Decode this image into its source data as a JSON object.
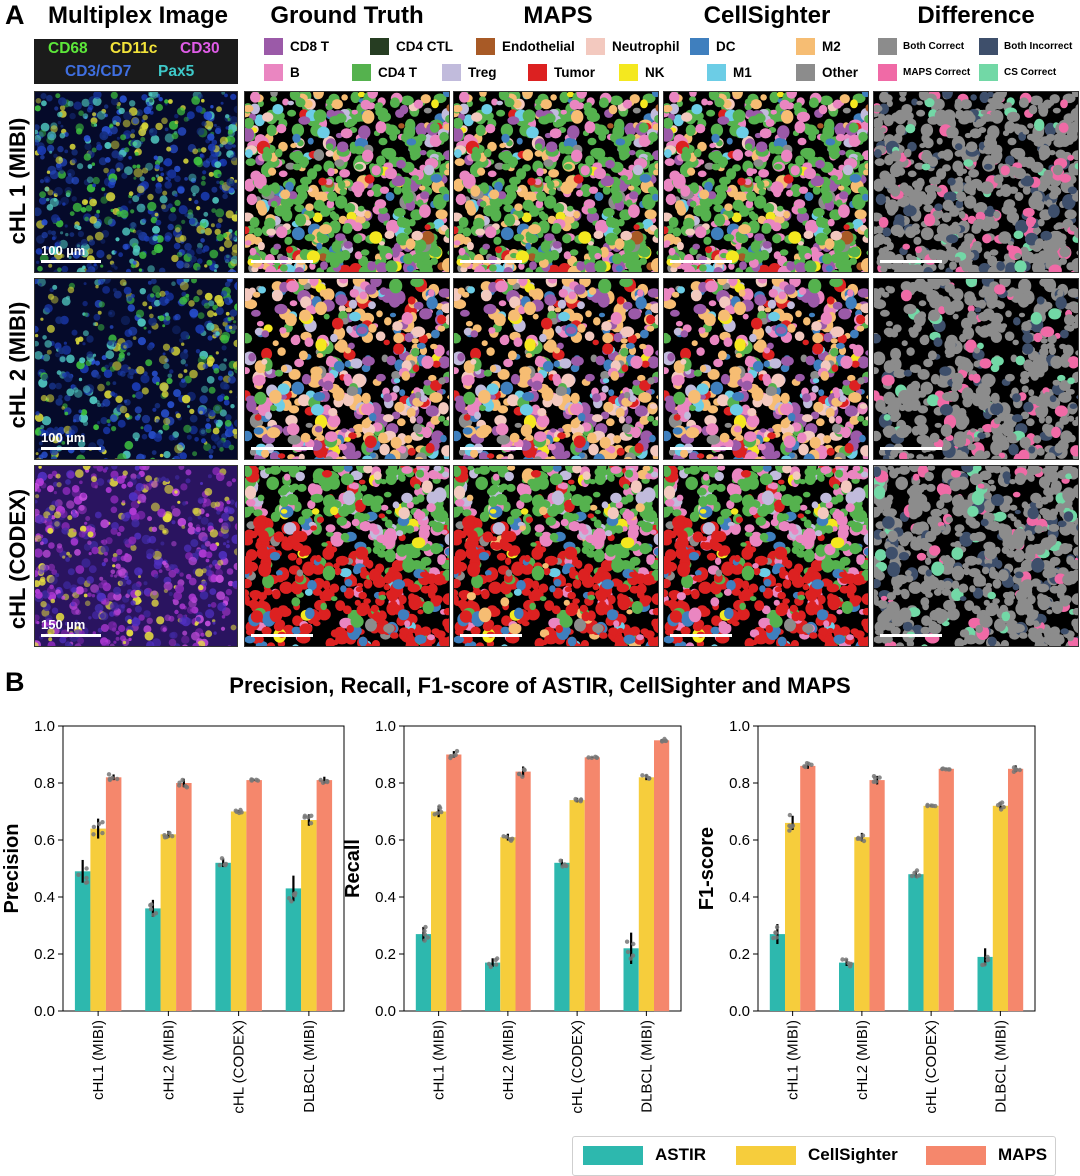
{
  "panel_a": {
    "letter": "A",
    "column_titles": [
      "Multiplex Image",
      "Ground Truth",
      "MAPS",
      "CellSighter",
      "Difference"
    ],
    "row_labels": [
      "cHL 1 (MIBI)",
      "cHL 2 (MIBI)",
      "cHL (CODEX)"
    ],
    "scale_labels": [
      "100 µm",
      "100 µm",
      "150 µm"
    ],
    "markers": [
      {
        "text": "CD68",
        "color": "#5de83a"
      },
      {
        "text": "CD11c",
        "color": "#f2e33a"
      },
      {
        "text": "CD30",
        "color": "#e05ce8"
      },
      {
        "text": "CD3/CD7",
        "color": "#3f6fe0"
      },
      {
        "text": "Pax5",
        "color": "#3ec9c9"
      }
    ],
    "cell_type_legend": [
      {
        "label": "CD8 T",
        "color": "#9b5aa8"
      },
      {
        "label": "CD4 CTL",
        "color": "#263d22"
      },
      {
        "label": "Endothelial",
        "color": "#a85a26"
      },
      {
        "label": "Neutrophil",
        "color": "#f3c9bf"
      },
      {
        "label": "DC",
        "color": "#3f7fbe"
      },
      {
        "label": "M2",
        "color": "#f6bd73"
      },
      {
        "label": "B",
        "color": "#ea86c1"
      },
      {
        "label": "CD4 T",
        "color": "#55b24e"
      },
      {
        "label": "Treg",
        "color": "#c1bbdc"
      },
      {
        "label": "Tumor",
        "color": "#dc2121"
      },
      {
        "label": "NK",
        "color": "#f4e81f"
      },
      {
        "label": "M1",
        "color": "#6ccde6"
      },
      {
        "label": "Other",
        "color": "#8c8c8c"
      }
    ],
    "difference_legend": [
      {
        "label": "Both Correct",
        "color": "#8c8c8c"
      },
      {
        "label": "Both Incorrect",
        "color": "#3e4f6b"
      },
      {
        "label": "MAPS Correct",
        "color": "#f06aa6"
      },
      {
        "label": "CS Correct",
        "color": "#72d8a6"
      }
    ]
  },
  "panel_b": {
    "letter": "B",
    "title": "Precision, Recall, F1-score of ASTIR, CellSighter and MAPS",
    "series_legend": [
      {
        "name": "ASTIR",
        "color": "#2db8ae"
      },
      {
        "name": "CellSighter",
        "color": "#f6cd3c"
      },
      {
        "name": "MAPS",
        "color": "#f5876c"
      }
    ]
  },
  "chart_data": [
    {
      "type": "bar",
      "ylabel": "Precision",
      "categories": [
        "cHL1 (MIBI)",
        "cHL2 (MIBI)",
        "cHL (CODEX)",
        "DLBCL (MIBI)"
      ],
      "ylim": [
        0.0,
        1.0
      ],
      "yticks": [
        "0.0",
        "0.2",
        "0.4",
        "0.6",
        "0.8",
        "1.0"
      ],
      "series": [
        {
          "name": "ASTIR",
          "values": [
            0.49,
            0.36,
            0.52,
            0.43
          ],
          "err": [
            0.04,
            0.03,
            0.015,
            0.045
          ]
        },
        {
          "name": "CellSighter",
          "values": [
            0.64,
            0.62,
            0.7,
            0.67
          ],
          "err": [
            0.035,
            0.012,
            0.005,
            0.02
          ]
        },
        {
          "name": "MAPS",
          "values": [
            0.82,
            0.8,
            0.81,
            0.81
          ],
          "err": [
            0.01,
            0.015,
            0.003,
            0.012
          ]
        }
      ]
    },
    {
      "type": "bar",
      "ylabel": "Recall",
      "categories": [
        "cHL1 (MIBI)",
        "cHL2 (MIBI)",
        "cHL (CODEX)",
        "DLBCL (MIBI)"
      ],
      "ylim": [
        0.0,
        1.0
      ],
      "yticks": [
        "0.0",
        "0.2",
        "0.4",
        "0.6",
        "0.8",
        "1.0"
      ],
      "series": [
        {
          "name": "ASTIR",
          "values": [
            0.27,
            0.17,
            0.52,
            0.22
          ],
          "err": [
            0.025,
            0.015,
            0.012,
            0.055
          ]
        },
        {
          "name": "CellSighter",
          "values": [
            0.7,
            0.61,
            0.74,
            0.82
          ],
          "err": [
            0.02,
            0.012,
            0.008,
            0.01
          ]
        },
        {
          "name": "MAPS",
          "values": [
            0.9,
            0.84,
            0.89,
            0.95
          ],
          "err": [
            0.012,
            0.018,
            0.002,
            0.004
          ]
        }
      ]
    },
    {
      "type": "bar",
      "ylabel": "F1-score",
      "categories": [
        "cHL1 (MIBI)",
        "cHL2 (MIBI)",
        "cHL (CODEX)",
        "DLBCL (MIBI)"
      ],
      "ylim": [
        0.0,
        1.0
      ],
      "yticks": [
        "0.0",
        "0.2",
        "0.4",
        "0.6",
        "0.8",
        "1.0"
      ],
      "series": [
        {
          "name": "ASTIR",
          "values": [
            0.27,
            0.17,
            0.48,
            0.19
          ],
          "err": [
            0.035,
            0.012,
            0.012,
            0.03
          ]
        },
        {
          "name": "CellSighter",
          "values": [
            0.66,
            0.61,
            0.72,
            0.72
          ],
          "err": [
            0.025,
            0.015,
            0.003,
            0.012
          ]
        },
        {
          "name": "MAPS",
          "values": [
            0.86,
            0.81,
            0.85,
            0.85
          ],
          "err": [
            0.01,
            0.015,
            0.002,
            0.012
          ]
        }
      ]
    }
  ]
}
